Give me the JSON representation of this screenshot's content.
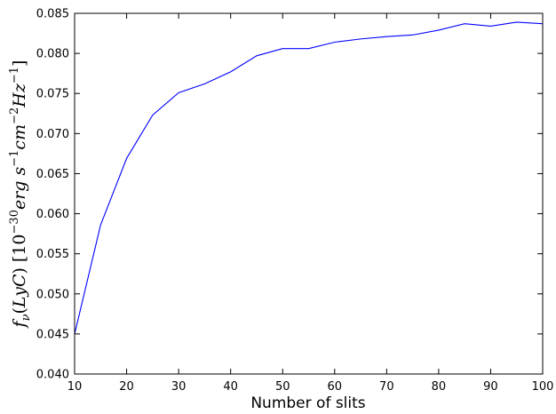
{
  "chart_data": {
    "type": "line",
    "title": "",
    "xlabel": "Number of slits",
    "ylabel": "f_ν(LyC) [10^-30 erg s^-1 cm^-2 Hz^-1]",
    "xlim": [
      10,
      100
    ],
    "ylim": [
      0.04,
      0.085
    ],
    "x_ticks": [
      "10",
      "20",
      "30",
      "40",
      "50",
      "60",
      "70",
      "80",
      "90",
      "100"
    ],
    "y_ticks": [
      "0.040",
      "0.045",
      "0.050",
      "0.055",
      "0.060",
      "0.065",
      "0.070",
      "0.075",
      "0.080",
      "0.085"
    ],
    "grid": false,
    "legend": "none",
    "series": [
      {
        "color": "#0000ff",
        "x": [
          10,
          15,
          20,
          25,
          30,
          35,
          40,
          45,
          50,
          55,
          60,
          65,
          70,
          75,
          80,
          85,
          90,
          95,
          100
        ],
        "y": [
          0.045,
          0.0586,
          0.0669,
          0.0723,
          0.0751,
          0.0762,
          0.0777,
          0.0797,
          0.0806,
          0.0806,
          0.0814,
          0.0818,
          0.0821,
          0.0823,
          0.0829,
          0.0837,
          0.0834,
          0.0839,
          0.0837
        ]
      }
    ]
  }
}
